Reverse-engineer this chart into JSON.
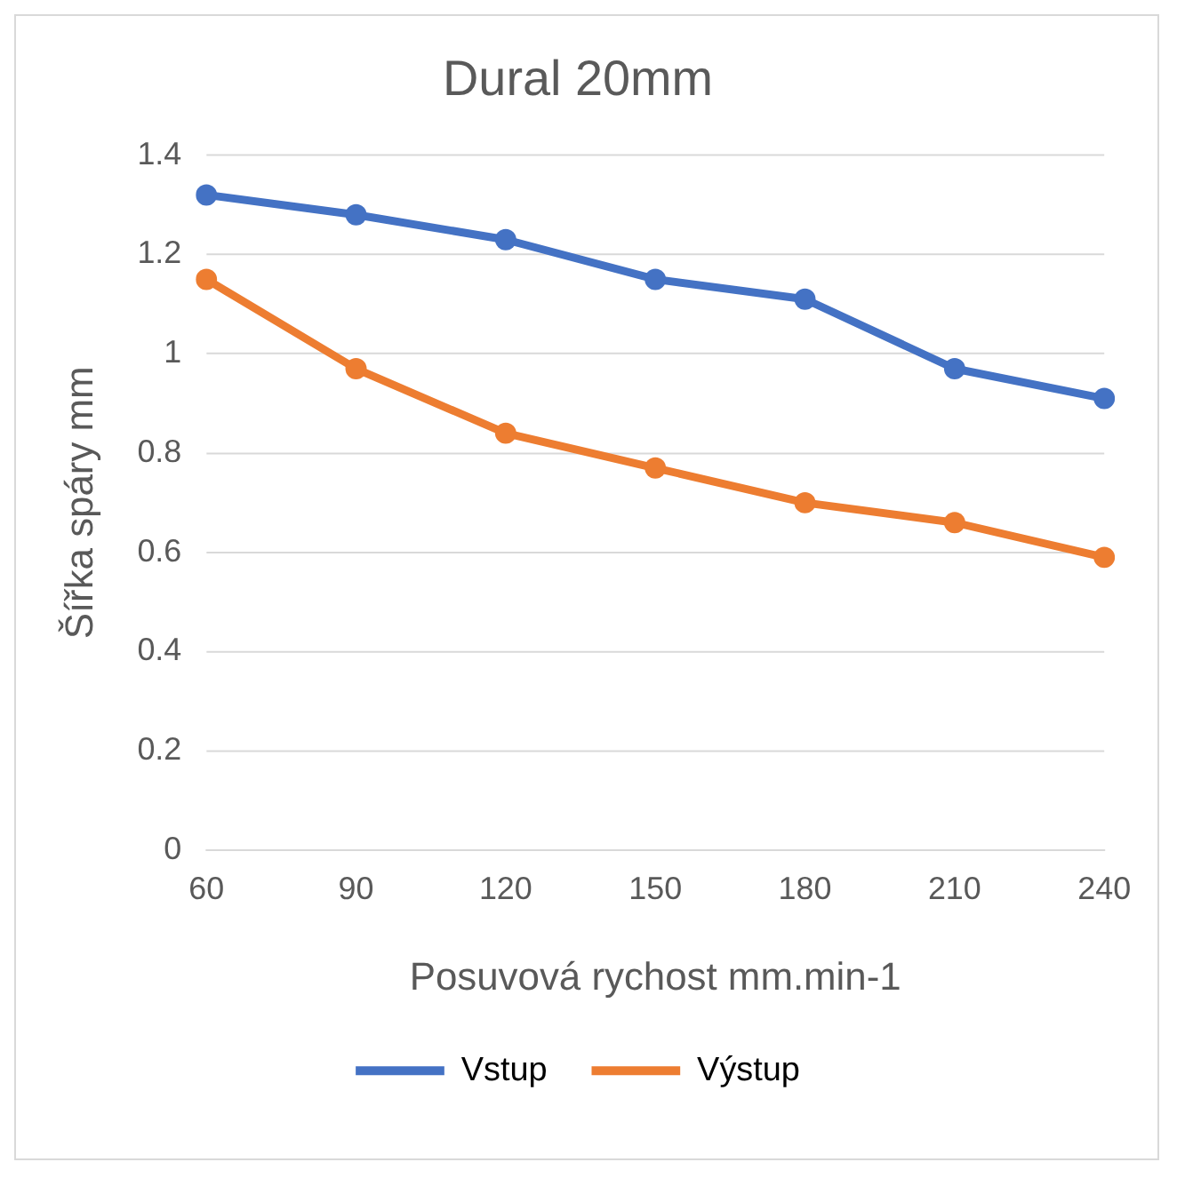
{
  "chart_data": {
    "type": "line",
    "title": "Dural 20mm",
    "xlabel": "Posuvová rychost mm.min-1",
    "ylabel": "Šířka spáry mm",
    "categories": [
      "60",
      "90",
      "120",
      "150",
      "180",
      "210",
      "240"
    ],
    "series": [
      {
        "name": "Vstup",
        "color": "#4472c4",
        "values": [
          1.32,
          1.28,
          1.23,
          1.15,
          1.11,
          0.97,
          0.91
        ]
      },
      {
        "name": "Výstup",
        "color": "#ed7d31",
        "values": [
          1.15,
          0.97,
          0.84,
          0.77,
          0.7,
          0.66,
          0.59
        ]
      }
    ],
    "ylim": [
      0,
      1.4
    ],
    "yticks": [
      0,
      0.2,
      0.4,
      0.6,
      0.8,
      1,
      1.2,
      1.4
    ],
    "grid": "y",
    "legend": "bottom",
    "marker": "circle",
    "line_style": "solid"
  }
}
